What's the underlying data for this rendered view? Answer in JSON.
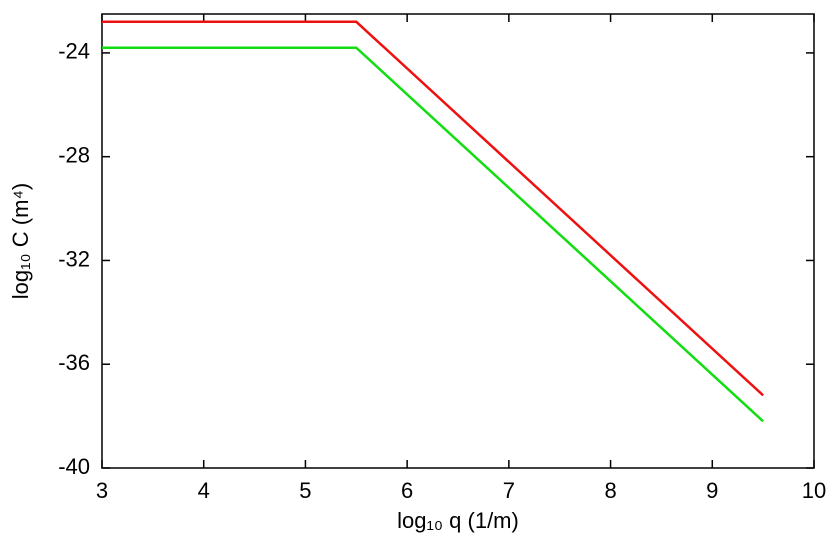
{
  "chart_data": {
    "type": "line",
    "x_label": "log₁₀ q (1/m)",
    "y_label": "log₁₀ C (m⁴)",
    "x": [
      3,
      5.5,
      9.5
    ],
    "series": [
      {
        "color": "#ee1111",
        "values": [
          -22.8,
          -22.8,
          -37.2
        ]
      },
      {
        "color": "#11dd11",
        "values": [
          -23.8,
          -23.8,
          -38.2
        ]
      }
    ],
    "xlim": [
      3,
      10
    ],
    "ylim": [
      -40,
      -22.5
    ],
    "xticks": [
      3,
      4,
      5,
      6,
      7,
      8,
      9,
      10
    ],
    "yticks": [
      -40,
      -36,
      -32,
      -28,
      -24
    ]
  }
}
